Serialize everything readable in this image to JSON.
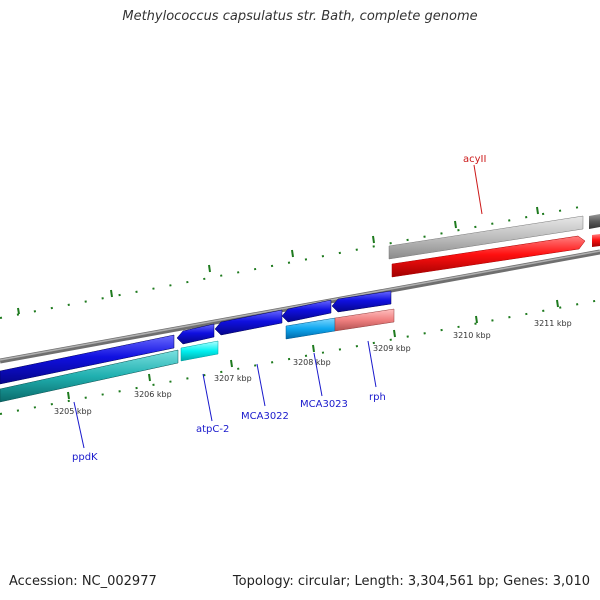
{
  "title": "Methylococcus capsulatus str. Bath, complete genome",
  "footer": {
    "accession": "Accession: NC_002977",
    "summary": "Topology: circular; Length: 3,304,561 bp; Genes: 3,010"
  },
  "colors": {
    "backbone": "#8a8a8a",
    "tick": "#1e7a1e",
    "label_blue": "#1a1acc",
    "label_red": "#cc1a1a"
  },
  "kbp_labels": [
    "3205 kbp",
    "3206 kbp",
    "3207 kbp",
    "3208 kbp",
    "3209 kbp",
    "3210 kbp",
    "3211 kbp"
  ],
  "genes": [
    {
      "name": "ppdK",
      "color": "#1a1acc"
    },
    {
      "name": "atpC-2",
      "color": "#1a1acc"
    },
    {
      "name": "MCA3022",
      "color": "#1a1acc"
    },
    {
      "name": "MCA3023",
      "color": "#1a1acc"
    },
    {
      "name": "rph",
      "color": "#1a1acc"
    },
    {
      "name": "acyII",
      "color": "#cc1a1a"
    }
  ]
}
